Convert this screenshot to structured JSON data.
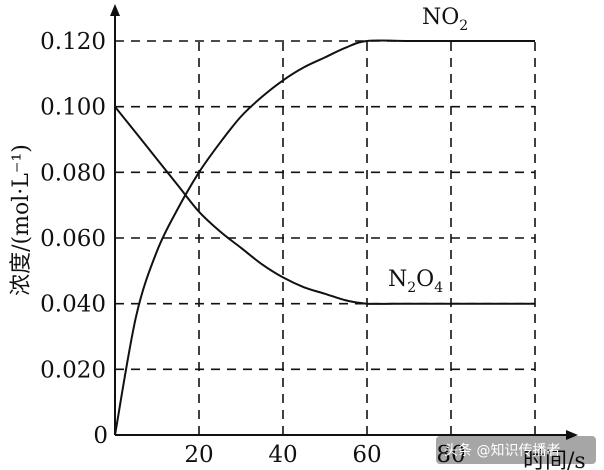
{
  "chart_data": {
    "type": "line",
    "title": "",
    "xlabel": "时间/s",
    "ylabel": "浓度/(mol·L⁻¹)",
    "xlim": [
      0,
      100
    ],
    "ylim": [
      0,
      0.12
    ],
    "x_ticks": [
      "0",
      "20",
      "40",
      "60",
      "80"
    ],
    "y_ticks": [
      "0",
      "0.020",
      "0.040",
      "0.060",
      "0.080",
      "0.100",
      "0.120"
    ],
    "grid": true,
    "series": [
      {
        "name": "NO2",
        "label_main": "NO",
        "label_sub": "2",
        "x": [
          0,
          5,
          10,
          15,
          20,
          25,
          30,
          35,
          40,
          45,
          50,
          55,
          60,
          70,
          80,
          90,
          100
        ],
        "y": [
          0,
          0.036,
          0.056,
          0.069,
          0.08,
          0.089,
          0.097,
          0.103,
          0.108,
          0.112,
          0.115,
          0.118,
          0.12,
          0.12,
          0.12,
          0.12,
          0.12
        ]
      },
      {
        "name": "N2O4",
        "label_main": "N",
        "label_sub": "2",
        "label_main2": "O",
        "label_sub2": "4",
        "x": [
          0,
          5,
          10,
          15,
          20,
          25,
          30,
          35,
          40,
          45,
          50,
          55,
          60,
          70,
          80,
          90,
          100
        ],
        "y": [
          0.1,
          0.092,
          0.084,
          0.076,
          0.068,
          0.062,
          0.057,
          0.052,
          0.048,
          0.045,
          0.043,
          0.041,
          0.04,
          0.04,
          0.04,
          0.04,
          0.04
        ]
      }
    ]
  },
  "watermark": "头条 @知识传播者"
}
